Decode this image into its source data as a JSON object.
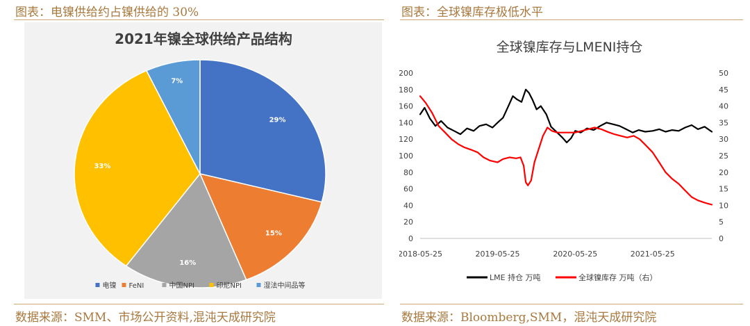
{
  "left_panel": {
    "header": "图表：电镍供给约占镍供给的 30%",
    "source": "数据来源：SMM、市场公开资料,混沌天成研究院"
  },
  "right_panel": {
    "header": "图表：全球镍库存极低水平",
    "source": "数据来源：Bloomberg,SMM，混沌天成研究院"
  },
  "chart_data": [
    {
      "type": "pie",
      "title": "2021年镍全球供给产品结构",
      "slices": [
        {
          "name": "电镍",
          "value": 29,
          "label": "29%",
          "color": "#4472c4"
        },
        {
          "name": "FeNI",
          "value": 15,
          "label": "15%",
          "color": "#ed7d31"
        },
        {
          "name": "中国NPI",
          "value": 16,
          "label": "16%",
          "color": "#a5a5a5"
        },
        {
          "name": "印尼NPI",
          "value": 33,
          "label": "33%",
          "color": "#ffc000"
        },
        {
          "name": "湿法中间品等",
          "value": 7,
          "label": "7%",
          "color": "#5b9bd5"
        }
      ],
      "legend_position": "bottom",
      "background": "#f2f2f2"
    },
    {
      "type": "line",
      "title": "全球镍库存与LMENI持仓",
      "x_ticks": [
        "2018-05-25",
        "2019-05-25",
        "2020-05-25",
        "2021-05-25"
      ],
      "xlim": [
        "2018-05-25",
        "2022-02-28"
      ],
      "y_left": {
        "lim": [
          0,
          200
        ],
        "ticks": [
          "0",
          "20",
          "40",
          "60",
          "80",
          "100",
          "120",
          "140",
          "160",
          "180",
          "200"
        ]
      },
      "y_right": {
        "lim": [
          0,
          50
        ],
        "ticks": [
          "0",
          "5",
          "10",
          "15",
          "20",
          "25",
          "30",
          "35",
          "40",
          "45",
          "50"
        ]
      },
      "grid": false,
      "legend_position": "bottom",
      "series": [
        {
          "name": "LME 持仓 万吨",
          "axis": "left",
          "color": "#000000",
          "points": [
            [
              "2018-05-25",
              150
            ],
            [
              "2018-06-15",
              158
            ],
            [
              "2018-07-10",
              145
            ],
            [
              "2018-08-05",
              136
            ],
            [
              "2018-09-01",
              142
            ],
            [
              "2018-10-01",
              134
            ],
            [
              "2018-11-01",
              130
            ],
            [
              "2018-12-01",
              126
            ],
            [
              "2019-01-01",
              133
            ],
            [
              "2019-02-01",
              130
            ],
            [
              "2019-03-01",
              136
            ],
            [
              "2019-04-01",
              138
            ],
            [
              "2019-05-01",
              134
            ],
            [
              "2019-05-25",
              140
            ],
            [
              "2019-06-20",
              146
            ],
            [
              "2019-07-15",
              160
            ],
            [
              "2019-08-05",
              172
            ],
            [
              "2019-08-25",
              168
            ],
            [
              "2019-09-15",
              165
            ],
            [
              "2019-10-05",
              180
            ],
            [
              "2019-10-20",
              176
            ],
            [
              "2019-11-05",
              168
            ],
            [
              "2019-11-25",
              156
            ],
            [
              "2019-12-15",
              160
            ],
            [
              "2020-01-10",
              150
            ],
            [
              "2020-02-01",
              135
            ],
            [
              "2020-03-01",
              128
            ],
            [
              "2020-03-25",
              122
            ],
            [
              "2020-04-15",
              116
            ],
            [
              "2020-05-05",
              121
            ],
            [
              "2020-05-25",
              130
            ],
            [
              "2020-06-20",
              128
            ],
            [
              "2020-07-20",
              133
            ],
            [
              "2020-08-20",
              131
            ],
            [
              "2020-09-20",
              136
            ],
            [
              "2020-10-20",
              140
            ],
            [
              "2020-11-20",
              138
            ],
            [
              "2020-12-20",
              136
            ],
            [
              "2021-01-20",
              132
            ],
            [
              "2021-02-20",
              128
            ],
            [
              "2021-03-20",
              131
            ],
            [
              "2021-04-20",
              129
            ],
            [
              "2021-05-25",
              130
            ],
            [
              "2021-06-25",
              132
            ],
            [
              "2021-07-25",
              129
            ],
            [
              "2021-08-25",
              131
            ],
            [
              "2021-09-25",
              130
            ],
            [
              "2021-10-25",
              134
            ],
            [
              "2021-11-25",
              137
            ],
            [
              "2021-12-25",
              132
            ],
            [
              "2022-01-25",
              135
            ],
            [
              "2022-02-28",
              129
            ]
          ]
        },
        {
          "name": "全球镍库存 万吨（右）",
          "axis": "right",
          "color": "#ff0000",
          "points": [
            [
              "2018-05-25",
              43
            ],
            [
              "2018-06-20",
              41
            ],
            [
              "2018-07-20",
              38
            ],
            [
              "2018-08-20",
              34
            ],
            [
              "2018-09-20",
              32
            ],
            [
              "2018-10-20",
              30
            ],
            [
              "2018-11-20",
              28.5
            ],
            [
              "2018-12-20",
              27.5
            ],
            [
              "2019-01-20",
              26.8
            ],
            [
              "2019-02-20",
              26
            ],
            [
              "2019-03-20",
              24.5
            ],
            [
              "2019-04-20",
              23.5
            ],
            [
              "2019-05-25",
              23
            ],
            [
              "2019-06-20",
              24
            ],
            [
              "2019-07-20",
              24.5
            ],
            [
              "2019-08-20",
              24.2
            ],
            [
              "2019-09-10",
              24.5
            ],
            [
              "2019-09-25",
              22
            ],
            [
              "2019-10-05",
              17
            ],
            [
              "2019-10-15",
              16
            ],
            [
              "2019-10-30",
              17.5
            ],
            [
              "2019-11-15",
              23
            ],
            [
              "2019-12-05",
              27
            ],
            [
              "2019-12-25",
              31
            ],
            [
              "2020-01-15",
              33.5
            ],
            [
              "2020-02-05",
              32.5
            ],
            [
              "2020-03-01",
              32
            ],
            [
              "2020-04-01",
              32
            ],
            [
              "2020-05-01",
              32
            ],
            [
              "2020-05-25",
              32
            ],
            [
              "2020-06-25",
              32.5
            ],
            [
              "2020-07-25",
              33
            ],
            [
              "2020-08-25",
              33.5
            ],
            [
              "2020-09-25",
              33
            ],
            [
              "2020-10-25",
              32.2
            ],
            [
              "2020-11-25",
              31.5
            ],
            [
              "2020-12-25",
              31
            ],
            [
              "2021-01-25",
              30.5
            ],
            [
              "2021-02-25",
              31
            ],
            [
              "2021-03-25",
              30
            ],
            [
              "2021-04-25",
              28
            ],
            [
              "2021-05-25",
              26
            ],
            [
              "2021-06-25",
              23
            ],
            [
              "2021-07-25",
              20
            ],
            [
              "2021-08-25",
              18
            ],
            [
              "2021-09-25",
              16.5
            ],
            [
              "2021-10-25",
              14.5
            ],
            [
              "2021-11-25",
              12.5
            ],
            [
              "2021-12-25",
              11.5
            ],
            [
              "2022-01-25",
              10.8
            ],
            [
              "2022-02-28",
              10.2
            ]
          ]
        }
      ]
    }
  ]
}
